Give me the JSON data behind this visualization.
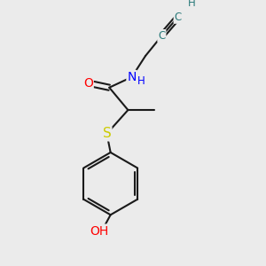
{
  "bg_color": "#ebebeb",
  "bond_color": "#1a1a1a",
  "bond_width": 1.5,
  "atom_colors": {
    "O": "#ff0000",
    "N": "#0000ff",
    "S": "#cccc00",
    "C": "#2a7a7a",
    "H": "#2a7a7a"
  },
  "font_size_main": 10,
  "font_size_small": 8.5
}
